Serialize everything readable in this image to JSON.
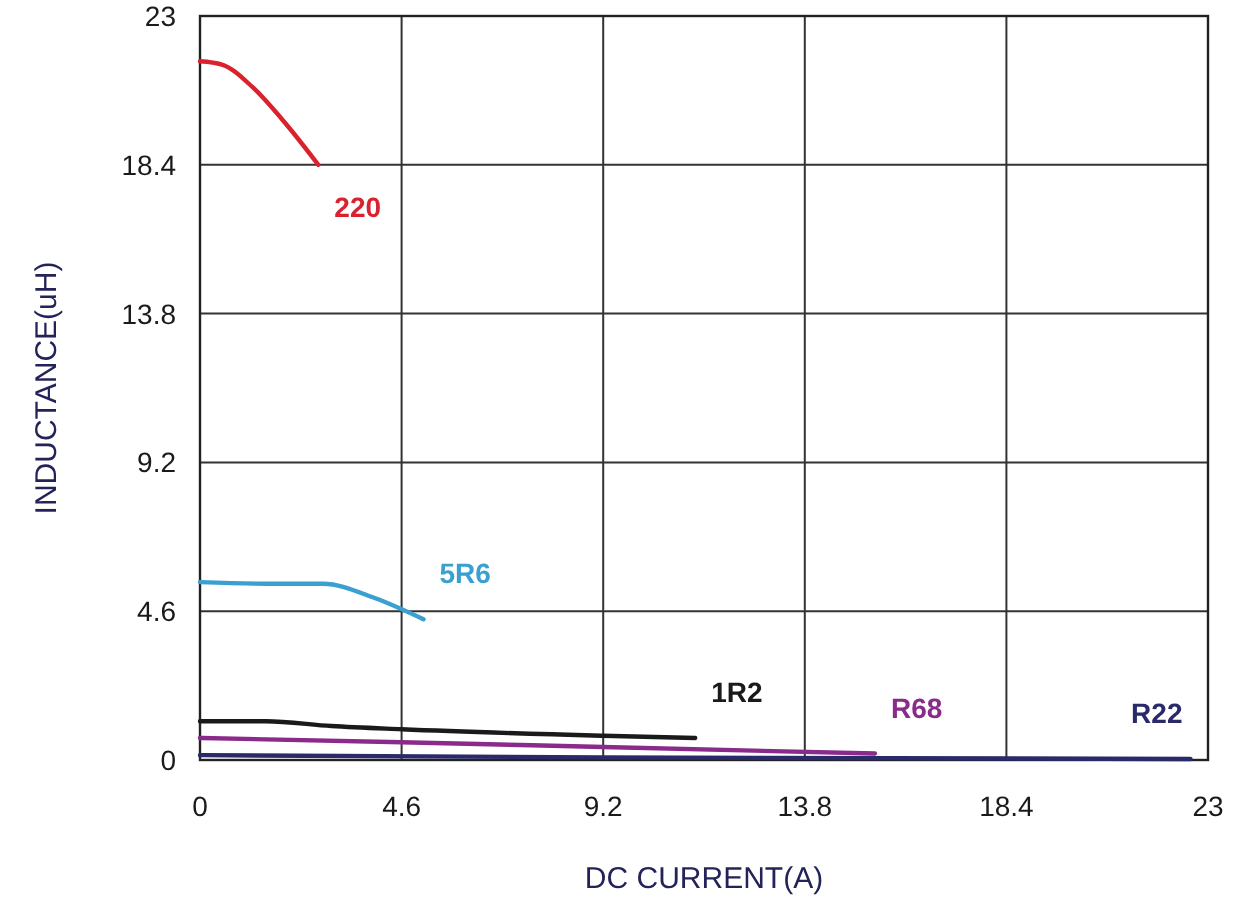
{
  "chart_data": {
    "type": "line",
    "xlabel": "DC CURRENT(A)",
    "ylabel": "INDUCTANCE(uH)",
    "xlim": [
      0,
      23
    ],
    "ylim": [
      0,
      23
    ],
    "xticks": [
      0,
      4.6,
      9.2,
      13.8,
      18.4,
      23
    ],
    "yticks": [
      0,
      4.6,
      9.2,
      13.8,
      18.4,
      23
    ],
    "grid": true,
    "marker": "none",
    "line_style": "solid",
    "series": [
      {
        "name": "220",
        "color": "#d9222e",
        "x": [
          0,
          0.5,
          1.2,
          2,
          2.7
        ],
        "values": [
          21.6,
          21.5,
          20.8,
          19.6,
          18.4
        ]
      },
      {
        "name": "5R6",
        "color": "#3aa0d0",
        "x": [
          0,
          1.5,
          2.8,
          4,
          5.1
        ],
        "values": [
          5.5,
          5.45,
          5.45,
          5.0,
          4.35
        ]
      },
      {
        "name": "1R2",
        "color": "#1a1a1a",
        "x": [
          0,
          1.5,
          3,
          4.6,
          9.2,
          11.3
        ],
        "values": [
          1.2,
          1.2,
          1.05,
          0.95,
          0.75,
          0.68
        ]
      },
      {
        "name": "R68",
        "color": "#8a2a8a",
        "x": [
          0,
          4.6,
          9.2,
          15.4
        ],
        "values": [
          0.68,
          0.55,
          0.4,
          0.2
        ]
      },
      {
        "name": "R22",
        "color": "#2a2a6a",
        "x": [
          0,
          9.2,
          22.6
        ],
        "values": [
          0.15,
          0.08,
          0.03
        ]
      }
    ]
  }
}
